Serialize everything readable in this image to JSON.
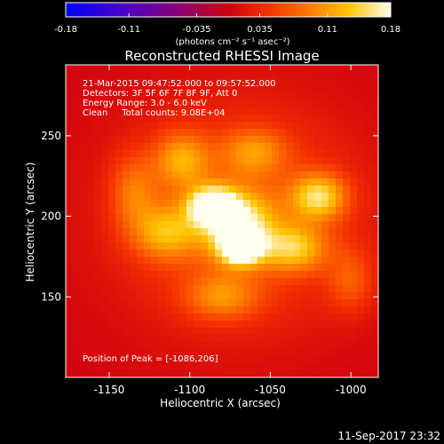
{
  "colorbar": {
    "tick_labels": [
      "-0.18",
      "-0.11",
      "-0.035",
      "0.035",
      "0.11",
      "0.18"
    ],
    "tick_values": [
      -0.18,
      -0.11,
      -0.035,
      0.035,
      0.11,
      0.18
    ],
    "range": [
      -0.18,
      0.18
    ],
    "units_label": "(photons cm⁻² s⁻¹ asec⁻²)"
  },
  "annotation": {
    "line1": "21-Mar-2015 09:47:52.000 to 09:57:52.000",
    "line2": "Detectors: 3F 5F 6F 7F 8F 9F, Att 0",
    "line3": "Energy Range: 3.0 - 6.0 keV",
    "line4": "Clean     Total counts: 9.08E+04",
    "peak": "Position of Peak = [-1086,206]"
  },
  "footer_timestamp": "11-Sep-2017 23:32",
  "chart_data": {
    "type": "heatmap",
    "title": "Reconstructed RHESSI Image",
    "xlabel": "Heliocentric X (arcsec)",
    "ylabel": "Heliocentric Y (arcsec)",
    "xlim": [
      -1177,
      -983
    ],
    "ylim": [
      100,
      294
    ],
    "x_ticks": [
      -1150,
      -1100,
      -1050,
      -1000
    ],
    "x_tick_labels": [
      "-1150",
      "-1100",
      "-1050",
      "-1000"
    ],
    "y_ticks": [
      150,
      200,
      250
    ],
    "y_tick_labels": [
      "150",
      "200",
      "250"
    ],
    "colormap": "red-temperature",
    "value_range": [
      -0.18,
      0.18
    ],
    "peak": [
      -1086,
      206
    ],
    "blobs": [
      {
        "x": -1086,
        "y": 206,
        "value": 0.175,
        "sx": 10,
        "sy": 8
      },
      {
        "x": -1068,
        "y": 180,
        "value": 0.165,
        "sx": 9,
        "sy": 7
      },
      {
        "x": -1070,
        "y": 195,
        "value": 0.13,
        "sx": 16,
        "sy": 14
      },
      {
        "x": -1020,
        "y": 212,
        "value": 0.12,
        "sx": 12,
        "sy": 10
      },
      {
        "x": -1035,
        "y": 180,
        "value": 0.1,
        "sx": 14,
        "sy": 10
      },
      {
        "x": -1115,
        "y": 190,
        "value": 0.09,
        "sx": 14,
        "sy": 12
      },
      {
        "x": -1105,
        "y": 235,
        "value": 0.085,
        "sx": 12,
        "sy": 12
      },
      {
        "x": -1060,
        "y": 240,
        "value": 0.07,
        "sx": 14,
        "sy": 10
      },
      {
        "x": -1080,
        "y": 150,
        "value": 0.07,
        "sx": 16,
        "sy": 10
      },
      {
        "x": -1135,
        "y": 215,
        "value": 0.06,
        "sx": 10,
        "sy": 16
      },
      {
        "x": -1000,
        "y": 160,
        "value": 0.05,
        "sx": 10,
        "sy": 14
      },
      {
        "x": -1070,
        "y": 200,
        "value": 0.06,
        "sx": 60,
        "sy": 55
      }
    ]
  }
}
